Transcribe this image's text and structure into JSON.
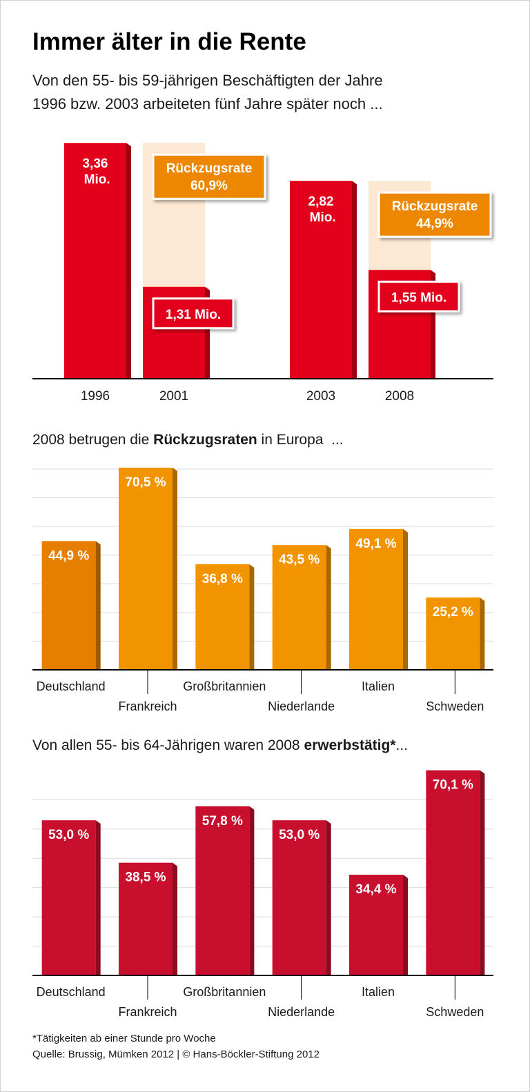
{
  "title": "Immer älter in die Rente",
  "subtitle": [
    "Von den 55- bis 59-jährigen Beschäftigten der Jahre",
    "1996 bzw. 2003 arbeiteten fünf Jahre später noch ..."
  ],
  "chart_data": [
    {
      "type": "bar",
      "categories": [
        "1996",
        "2001",
        "2003",
        "2008"
      ],
      "values": [
        3.36,
        1.31,
        2.82,
        1.55
      ],
      "value_labels": [
        "3,36 Mio.",
        "1,31 Mio.",
        "2,82 Mio.",
        "1,55 Mio."
      ],
      "color": "#e2001a",
      "remainder_color": "#fde9d3",
      "annotation_color": "#ee8700",
      "annotations": [
        [
          "Rückzugsrate",
          "60,9%"
        ],
        [
          "Rückzugsrate",
          "44,9%"
        ]
      ],
      "ylim": [
        0,
        3.5
      ]
    },
    {
      "type": "bar",
      "title": [
        "2008 betrugen die ",
        "Rückzugsraten",
        " in Europa  ..."
      ],
      "title_bold": [
        false,
        true,
        false
      ],
      "categories": [
        "Deutschland",
        "Frankreich",
        "Großbritannien",
        "Niederlande",
        "Italien",
        "Schweden"
      ],
      "values": [
        44.9,
        70.5,
        36.8,
        43.5,
        49.1,
        25.2
      ],
      "value_labels": [
        "44,9 %",
        "70,5 %",
        "36,8 %",
        "43,5 %",
        "49,1 %",
        "25,2 %"
      ],
      "colors": [
        "#e67e00",
        "#f29400",
        "#f29400",
        "#f29400",
        "#f29400",
        "#f29400"
      ],
      "ylim": [
        0,
        70
      ],
      "yticks": [
        0,
        10,
        20,
        30,
        40,
        50,
        60,
        70
      ],
      "grid": true
    },
    {
      "type": "bar",
      "title": [
        "Von allen 55- bis 64-Jährigen waren 2008 ",
        "erwerbstätig*",
        "..."
      ],
      "title_bold": [
        false,
        true,
        false
      ],
      "categories": [
        "Deutschland",
        "Frankreich",
        "Großbritannien",
        "Niederlande",
        "Italien",
        "Schweden"
      ],
      "values": [
        53.0,
        38.5,
        57.8,
        53.0,
        34.4,
        70.1
      ],
      "value_labels": [
        "53,0 %",
        "38,5 %",
        "57,8 %",
        "53,0 %",
        "34,4 %",
        "70,1 %"
      ],
      "color": "#c8102e",
      "ylim": [
        0,
        70
      ],
      "yticks": [
        0,
        10,
        20,
        30,
        40,
        50,
        60
      ],
      "grid": true
    }
  ],
  "footnote": "*Tätigkeiten ab einer Stunde pro Woche",
  "source": "Quelle: Brussig, Mümken 2012 | © Hans-Böckler-Stiftung 2012"
}
